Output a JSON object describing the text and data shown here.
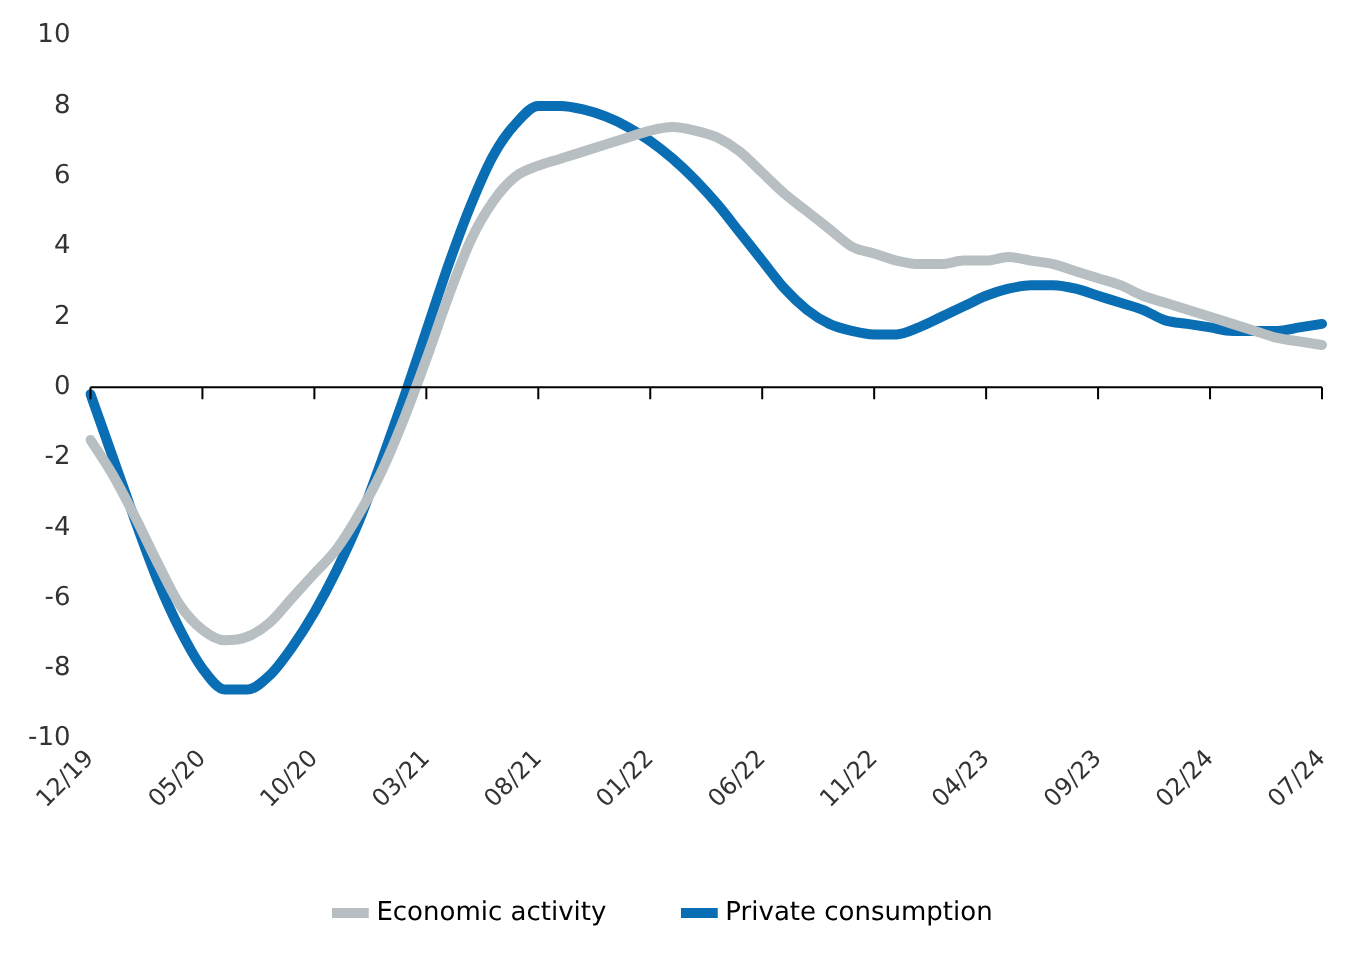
{
  "chart_data": {
    "type": "line",
    "categories": [
      "12/19",
      null,
      null,
      null,
      null,
      "05/20",
      null,
      null,
      null,
      null,
      "10/20",
      null,
      null,
      null,
      null,
      "03/21",
      null,
      null,
      null,
      null,
      "08/21",
      null,
      null,
      null,
      null,
      "01/22",
      null,
      null,
      null,
      null,
      "06/22",
      null,
      null,
      null,
      null,
      "11/22",
      null,
      null,
      null,
      null,
      "04/23",
      null,
      null,
      null,
      null,
      "09/23",
      null,
      null,
      null,
      null,
      "02/24",
      null,
      null,
      null,
      null,
      "07/24"
    ],
    "series": [
      {
        "name": "Economic activity",
        "color": "#b8bfc2",
        "values": [
          -1.5,
          -2.5,
          -3.7,
          -5.0,
          -6.2,
          -6.9,
          -7.2,
          -7.1,
          -6.7,
          -6.0,
          -5.3,
          -4.6,
          -3.6,
          -2.4,
          -0.9,
          0.8,
          2.6,
          4.2,
          5.3,
          6.0,
          6.3,
          6.5,
          6.7,
          6.9,
          7.1,
          7.3,
          7.4,
          7.3,
          7.1,
          6.7,
          6.1,
          5.5,
          5.0,
          4.5,
          4.0,
          3.8,
          3.6,
          3.5,
          3.5,
          3.6,
          3.6,
          3.7,
          3.6,
          3.5,
          3.3,
          3.1,
          2.9,
          2.6,
          2.4,
          2.2,
          2.0,
          1.8,
          1.6,
          1.4,
          1.3,
          1.2
        ]
      },
      {
        "name": "Private consumption",
        "color": "#0a6eb4",
        "values": [
          -0.2,
          -2.0,
          -3.8,
          -5.5,
          -6.9,
          -8.0,
          -8.6,
          -8.6,
          -8.2,
          -7.4,
          -6.4,
          -5.2,
          -3.8,
          -2.1,
          -0.3,
          1.6,
          3.5,
          5.2,
          6.6,
          7.5,
          8.0,
          8.0,
          7.9,
          7.7,
          7.4,
          7.0,
          6.5,
          5.9,
          5.2,
          4.4,
          3.6,
          2.8,
          2.2,
          1.8,
          1.6,
          1.5,
          1.5,
          1.7,
          2.0,
          2.3,
          2.6,
          2.8,
          2.9,
          2.9,
          2.8,
          2.6,
          2.4,
          2.2,
          1.9,
          1.8,
          1.7,
          1.6,
          1.6,
          1.6,
          1.7,
          1.8
        ]
      }
    ],
    "ylim": [
      -10,
      10
    ],
    "yticks": [
      -10,
      -8,
      -6,
      -4,
      -2,
      0,
      2,
      4,
      6,
      8,
      10
    ],
    "ref_lines": [
      {
        "axis": "y",
        "value": 0,
        "color": "#000000"
      }
    ],
    "legend": "bottom",
    "marker": "none",
    "line_style": "solid",
    "grid": false
  }
}
